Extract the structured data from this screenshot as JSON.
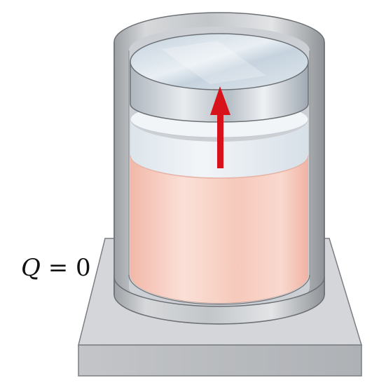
{
  "label": {
    "symbol": "Q",
    "relation": "= 0"
  },
  "colors": {
    "gas": "#f6c9bd",
    "gas_light": "#fbe2da",
    "gap": "#e6eef4",
    "wall": "#b9bcc0",
    "wall_dark": "#8f9397",
    "wall_light": "#dadcde",
    "piston_top": "#c9d6e2",
    "piston_side": "#a9b2bb",
    "base_top": "#d3d5d8",
    "base_side": "#b4b7ba",
    "arrow": "#d8121b",
    "outline": "#6d7175"
  },
  "icons": {
    "motion": "arrow-up-icon"
  }
}
